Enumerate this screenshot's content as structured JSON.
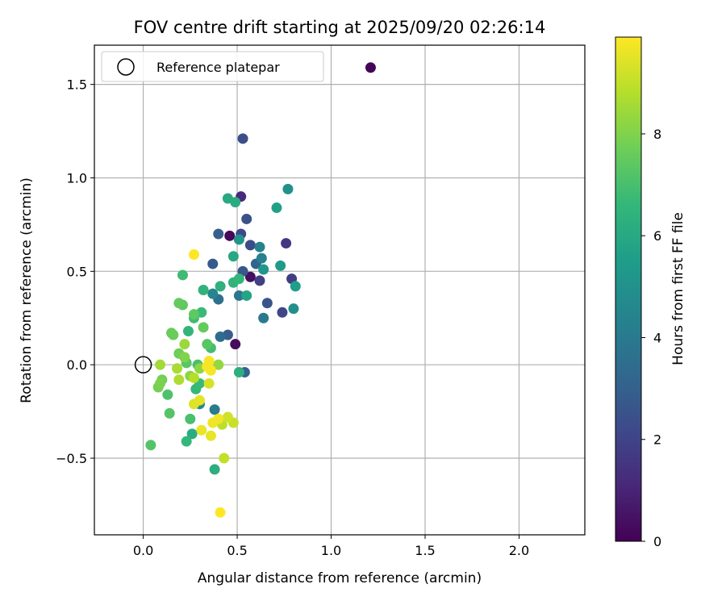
{
  "chart_data": {
    "type": "scatter",
    "title": "FOV centre drift starting at 2025/09/20 02:26:14",
    "xlabel": "Angular distance from reference (arcmin)",
    "ylabel": "Rotation from reference (arcmin)",
    "xlim": [
      -0.26,
      2.35
    ],
    "ylim": [
      -0.91,
      1.71
    ],
    "xticks": [
      0.0,
      0.5,
      1.0,
      1.5,
      2.0
    ],
    "xtick_labels": [
      "0.0",
      "0.5",
      "1.0",
      "1.5",
      "2.0"
    ],
    "yticks": [
      -0.5,
      0.0,
      0.5,
      1.0,
      1.5
    ],
    "ytick_labels": [
      "−0.5",
      "0.0",
      "0.5",
      "1.0",
      "1.5"
    ],
    "grid": true,
    "legend": {
      "placement": "top-left",
      "entries": [
        "Reference platepar"
      ]
    },
    "reference_point": {
      "x": 0.0,
      "y": 0.0,
      "label": "Reference platepar"
    },
    "colorbar": {
      "label": "Hours from first FF file",
      "min": 0,
      "max": 9.9,
      "ticks": [
        0,
        2,
        4,
        6,
        8
      ],
      "tick_labels": [
        "0",
        "2",
        "4",
        "6",
        "8"
      ],
      "colormap": "viridis"
    },
    "points": [
      {
        "x": 1.21,
        "y": 1.59,
        "t": 0.1
      },
      {
        "x": 0.46,
        "y": 0.69,
        "t": 0.2
      },
      {
        "x": 0.49,
        "y": 0.11,
        "t": 0.3
      },
      {
        "x": 0.57,
        "y": 0.47,
        "t": 0.4
      },
      {
        "x": 0.52,
        "y": 0.9,
        "t": 1.2
      },
      {
        "x": 0.76,
        "y": 0.65,
        "t": 1.6
      },
      {
        "x": 0.79,
        "y": 0.46,
        "t": 1.8
      },
      {
        "x": 0.62,
        "y": 0.45,
        "t": 1.9
      },
      {
        "x": 0.74,
        "y": 0.28,
        "t": 2.1
      },
      {
        "x": 0.52,
        "y": 0.7,
        "t": 2.2
      },
      {
        "x": 0.57,
        "y": 0.64,
        "t": 2.3
      },
      {
        "x": 0.53,
        "y": 1.21,
        "t": 2.4
      },
      {
        "x": 0.55,
        "y": 0.78,
        "t": 2.5
      },
      {
        "x": 0.66,
        "y": 0.33,
        "t": 2.6
      },
      {
        "x": 0.53,
        "y": 0.5,
        "t": 2.7
      },
      {
        "x": 0.37,
        "y": 0.54,
        "t": 2.8
      },
      {
        "x": 0.45,
        "y": 0.16,
        "t": 2.9
      },
      {
        "x": 0.4,
        "y": 0.7,
        "t": 3.0
      },
      {
        "x": 0.54,
        "y": -0.04,
        "t": 3.1
      },
      {
        "x": 0.6,
        "y": 0.54,
        "t": 3.2
      },
      {
        "x": 0.41,
        "y": 0.15,
        "t": 3.5
      },
      {
        "x": 0.4,
        "y": 0.35,
        "t": 3.7
      },
      {
        "x": 0.51,
        "y": 0.37,
        "t": 3.9
      },
      {
        "x": 0.64,
        "y": 0.25,
        "t": 4.0
      },
      {
        "x": 0.38,
        "y": -0.24,
        "t": 4.1
      },
      {
        "x": 0.63,
        "y": 0.57,
        "t": 4.3
      },
      {
        "x": 0.62,
        "y": 0.63,
        "t": 4.4
      },
      {
        "x": 0.37,
        "y": 0.38,
        "t": 4.6
      },
      {
        "x": 0.3,
        "y": -0.21,
        "t": 4.7
      },
      {
        "x": 0.8,
        "y": 0.3,
        "t": 4.9
      },
      {
        "x": 0.77,
        "y": 0.94,
        "t": 5.0
      },
      {
        "x": 0.51,
        "y": 0.67,
        "t": 5.1
      },
      {
        "x": 0.64,
        "y": 0.51,
        "t": 5.2
      },
      {
        "x": 0.73,
        "y": 0.53,
        "t": 5.4
      },
      {
        "x": 0.81,
        "y": 0.42,
        "t": 5.5
      },
      {
        "x": 0.71,
        "y": 0.84,
        "t": 5.6
      },
      {
        "x": 0.55,
        "y": 0.37,
        "t": 5.8
      },
      {
        "x": 0.48,
        "y": 0.58,
        "t": 5.9
      },
      {
        "x": 0.45,
        "y": 0.89,
        "t": 6.0
      },
      {
        "x": 0.49,
        "y": 0.87,
        "t": 6.1
      },
      {
        "x": 0.26,
        "y": -0.37,
        "t": 6.1
      },
      {
        "x": 0.38,
        "y": -0.56,
        "t": 6.2
      },
      {
        "x": 0.51,
        "y": -0.04,
        "t": 6.2
      },
      {
        "x": 0.41,
        "y": 0.42,
        "t": 6.3
      },
      {
        "x": 0.32,
        "y": 0.4,
        "t": 6.4
      },
      {
        "x": 0.48,
        "y": 0.44,
        "t": 6.4
      },
      {
        "x": 0.51,
        "y": 0.46,
        "t": 6.5
      },
      {
        "x": 0.24,
        "y": 0.18,
        "t": 6.5
      },
      {
        "x": 0.23,
        "y": -0.41,
        "t": 6.6
      },
      {
        "x": 0.28,
        "y": -0.13,
        "t": 6.6
      },
      {
        "x": 0.3,
        "y": -0.1,
        "t": 6.7
      },
      {
        "x": 0.31,
        "y": 0.28,
        "t": 6.7
      },
      {
        "x": 0.27,
        "y": 0.25,
        "t": 6.8
      },
      {
        "x": 0.21,
        "y": 0.48,
        "t": 6.8
      },
      {
        "x": 0.36,
        "y": 0.09,
        "t": 6.9
      },
      {
        "x": 0.29,
        "y": 0.0,
        "t": 7.0
      },
      {
        "x": 0.25,
        "y": -0.29,
        "t": 7.0
      },
      {
        "x": 0.13,
        "y": -0.16,
        "t": 7.1
      },
      {
        "x": 0.14,
        "y": -0.26,
        "t": 7.2
      },
      {
        "x": 0.04,
        "y": -0.43,
        "t": 7.2
      },
      {
        "x": 0.23,
        "y": 0.01,
        "t": 7.3
      },
      {
        "x": 0.34,
        "y": 0.11,
        "t": 7.3
      },
      {
        "x": 0.27,
        "y": 0.27,
        "t": 7.4
      },
      {
        "x": 0.21,
        "y": 0.32,
        "t": 7.4
      },
      {
        "x": 0.19,
        "y": 0.33,
        "t": 7.5
      },
      {
        "x": 0.32,
        "y": 0.2,
        "t": 7.5
      },
      {
        "x": 0.16,
        "y": 0.16,
        "t": 7.6
      },
      {
        "x": 0.15,
        "y": 0.17,
        "t": 7.6
      },
      {
        "x": 0.19,
        "y": 0.06,
        "t": 7.7
      },
      {
        "x": 0.08,
        "y": -0.12,
        "t": 7.8
      },
      {
        "x": 0.1,
        "y": -0.08,
        "t": 7.8
      },
      {
        "x": 0.09,
        "y": -0.1,
        "t": 7.9
      },
      {
        "x": 0.22,
        "y": 0.04,
        "t": 8.0
      },
      {
        "x": 0.25,
        "y": -0.06,
        "t": 8.1
      },
      {
        "x": 0.3,
        "y": -0.02,
        "t": 8.2
      },
      {
        "x": 0.4,
        "y": 0.0,
        "t": 8.3
      },
      {
        "x": 0.22,
        "y": 0.11,
        "t": 8.4
      },
      {
        "x": 0.09,
        "y": 0.0,
        "t": 8.5
      },
      {
        "x": 0.18,
        "y": -0.02,
        "t": 8.6
      },
      {
        "x": 0.19,
        "y": -0.08,
        "t": 8.7
      },
      {
        "x": 0.27,
        "y": -0.07,
        "t": 8.8
      },
      {
        "x": 0.42,
        "y": -0.32,
        "t": 8.9
      },
      {
        "x": 0.43,
        "y": -0.5,
        "t": 9.0
      },
      {
        "x": 0.48,
        "y": -0.31,
        "t": 9.1
      },
      {
        "x": 0.45,
        "y": -0.28,
        "t": 9.2
      },
      {
        "x": 0.35,
        "y": -0.1,
        "t": 9.3
      },
      {
        "x": 0.27,
        "y": -0.21,
        "t": 9.4
      },
      {
        "x": 0.3,
        "y": -0.19,
        "t": 9.5
      },
      {
        "x": 0.36,
        "y": -0.38,
        "t": 9.6
      },
      {
        "x": 0.31,
        "y": -0.35,
        "t": 9.6
      },
      {
        "x": 0.37,
        "y": -0.31,
        "t": 9.7
      },
      {
        "x": 0.4,
        "y": -0.29,
        "t": 9.7
      },
      {
        "x": 0.34,
        "y": -0.01,
        "t": 9.8
      },
      {
        "x": 0.36,
        "y": -0.03,
        "t": 9.8
      },
      {
        "x": 0.35,
        "y": 0.02,
        "t": 9.8
      },
      {
        "x": 0.27,
        "y": 0.59,
        "t": 9.9
      },
      {
        "x": 0.41,
        "y": -0.79,
        "t": 9.9
      }
    ]
  }
}
